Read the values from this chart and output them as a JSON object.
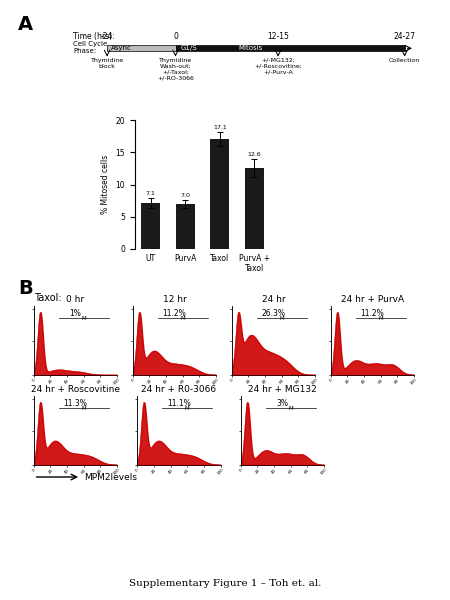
{
  "title_A": "A",
  "title_B": "B",
  "time_labels": [
    "-24",
    "0",
    "12-15",
    "24-27"
  ],
  "cell_cycle_phases": [
    "Async",
    "G1/S",
    "Mitosis"
  ],
  "timeline_annotations": [
    "Thymidine\nblock",
    "Thymidine\nWash-out;\n+/-Taxol;\n+/-RO-3066",
    "+/-MG132;\n+/-Roscovitine;\n+/-Purv-A",
    "Collection"
  ],
  "bar_labels": [
    "UT",
    "PurvA",
    "Taxol",
    "PurvA +\nTaxol"
  ],
  "bar_values": [
    7.1,
    7.0,
    17.1,
    12.6
  ],
  "bar_errors": [
    0.8,
    0.6,
    1.1,
    1.4
  ],
  "bar_color": "#1a1a1a",
  "ylabel_bar": "% Mitosed cells",
  "ylim_bar": [
    0,
    20
  ],
  "yticks_bar": [
    0,
    5,
    10,
    15,
    20
  ],
  "flow_titles": [
    "0 hr",
    "12 hr",
    "24 hr",
    "24 hr + PurvA",
    "24 hr + Roscovitine",
    "24 hr + R0-3066",
    "24 hr + MG132"
  ],
  "flow_percentages": [
    "1%",
    "11.2%",
    "26.3%",
    "11.2%",
    "11.3%",
    "11.1%",
    "3%"
  ],
  "flow_color": "#cc0000",
  "arrow_label": "MPM2levels",
  "caption": "Supplementary Figure 1 – Toh et. al.",
  "taxol_label": "Taxol:"
}
